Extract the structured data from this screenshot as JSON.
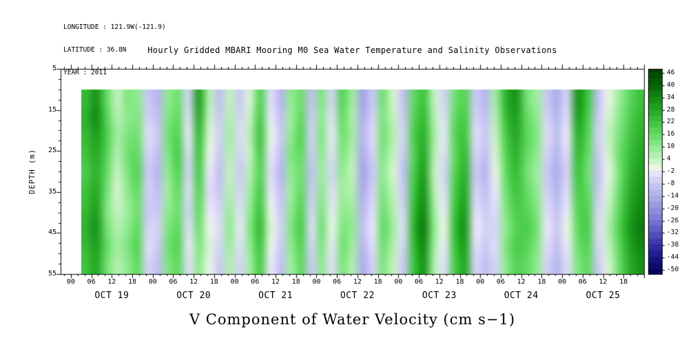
{
  "header": {
    "longitude": "LONGITUDE : 121.9W(-121.9)",
    "latitude": "LATITUDE : 36.8N",
    "year": "YEAR : 2011"
  },
  "chart_data": {
    "type": "heatmap",
    "title": "Hourly Gridded MBARI Mooring M0 Sea Water Temperature and Salinity Observations",
    "xlabel": "V Component of Water Velocity (cm s−1)",
    "ylabel": "DEPTH (m)",
    "y_axis": {
      "min": 5,
      "max": 55,
      "ticks": [
        5,
        15,
        25,
        35,
        45,
        55
      ],
      "minor_step": 2.5,
      "inverted": true
    },
    "x_axis": {
      "time_tick_labels": [
        "00",
        "06",
        "12",
        "18"
      ],
      "day_labels": [
        "OCT 19",
        "OCT 20",
        "OCT 21",
        "OCT 22",
        "OCT 23",
        "OCT 24",
        "OCT 25"
      ],
      "major_tick_hours": 6,
      "minor_tick_hours": 2
    },
    "colorbar": {
      "units": "cm s-1",
      "max": 48,
      "min": -52,
      "segment_step": 3,
      "ticks": [
        46,
        40,
        34,
        28,
        22,
        16,
        10,
        4,
        -2,
        -8,
        -14,
        -20,
        -26,
        -32,
        -38,
        -44,
        -50
      ],
      "stops": [
        {
          "v": 48,
          "c": "#004000"
        },
        {
          "v": 40,
          "c": "#076307"
        },
        {
          "v": 34,
          "c": "#128a12"
        },
        {
          "v": 28,
          "c": "#26a826"
        },
        {
          "v": 22,
          "c": "#3fc43f"
        },
        {
          "v": 16,
          "c": "#63da63"
        },
        {
          "v": 10,
          "c": "#90ea90"
        },
        {
          "v": 4,
          "c": "#c4f2c0"
        },
        {
          "v": 0,
          "c": "#e9f6e4"
        },
        {
          "v": -2,
          "c": "#e8e8f8"
        },
        {
          "v": -8,
          "c": "#c9c9f2"
        },
        {
          "v": -14,
          "c": "#adade9"
        },
        {
          "v": -20,
          "c": "#9292df"
        },
        {
          "v": -26,
          "c": "#7676d2"
        },
        {
          "v": -32,
          "c": "#5454bf"
        },
        {
          "v": -38,
          "c": "#3030a4"
        },
        {
          "v": -44,
          "c": "#161685"
        },
        {
          "v": -52,
          "c": "#000058"
        }
      ]
    },
    "depths": [
      10,
      15,
      20,
      25,
      30,
      35,
      40,
      45,
      50,
      55
    ],
    "data_start_hour": 3,
    "time_step_hours": 3,
    "values": [
      [
        24,
        32,
        16,
        4,
        12,
        10,
        -8,
        -12,
        10,
        14,
        -6,
        30,
        6,
        -10,
        4,
        -8,
        2,
        18,
        -4,
        -12,
        10,
        14,
        -10,
        12,
        -6,
        18,
        8,
        -16,
        -8,
        14,
        2,
        -10,
        16,
        22,
        4,
        -6,
        14,
        18,
        -8,
        -12,
        8,
        26,
        32,
        14,
        8,
        -8,
        -14,
        -6,
        32,
        22,
        -10,
        0,
        8,
        16,
        22
      ],
      [
        26,
        34,
        18,
        6,
        10,
        12,
        -6,
        -10,
        12,
        16,
        -4,
        28,
        4,
        -8,
        6,
        -6,
        4,
        20,
        -2,
        -10,
        8,
        16,
        -8,
        10,
        -4,
        16,
        6,
        -14,
        -6,
        12,
        4,
        -8,
        18,
        24,
        6,
        -4,
        16,
        20,
        -6,
        -10,
        6,
        24,
        30,
        16,
        10,
        -6,
        -12,
        -4,
        30,
        20,
        -8,
        2,
        10,
        18,
        24
      ],
      [
        24,
        30,
        20,
        8,
        12,
        14,
        -4,
        -8,
        14,
        18,
        -2,
        24,
        2,
        -6,
        8,
        -4,
        6,
        22,
        0,
        -8,
        10,
        18,
        -6,
        12,
        -2,
        14,
        8,
        -12,
        -4,
        14,
        6,
        -6,
        20,
        26,
        8,
        -2,
        18,
        22,
        -4,
        -8,
        4,
        20,
        28,
        18,
        12,
        -4,
        -10,
        -2,
        26,
        18,
        -6,
        4,
        12,
        20,
        26
      ],
      [
        22,
        28,
        18,
        6,
        14,
        16,
        -6,
        -10,
        12,
        20,
        -4,
        22,
        0,
        -8,
        6,
        -6,
        4,
        20,
        -2,
        -10,
        12,
        16,
        -8,
        10,
        -4,
        12,
        6,
        -14,
        -6,
        12,
        4,
        -8,
        18,
        28,
        6,
        -4,
        16,
        24,
        -6,
        -10,
        2,
        18,
        26,
        16,
        10,
        -6,
        -12,
        -4,
        24,
        16,
        -8,
        2,
        14,
        22,
        28
      ],
      [
        20,
        26,
        16,
        4,
        12,
        18,
        -8,
        -12,
        10,
        18,
        -6,
        20,
        -2,
        -10,
        4,
        -8,
        6,
        18,
        -4,
        -12,
        10,
        14,
        -10,
        8,
        -6,
        10,
        4,
        -16,
        -8,
        10,
        2,
        -10,
        20,
        30,
        4,
        -6,
        18,
        26,
        -8,
        -12,
        0,
        16,
        24,
        14,
        8,
        -8,
        -14,
        -6,
        22,
        14,
        -10,
        0,
        12,
        24,
        30
      ],
      [
        22,
        28,
        14,
        2,
        10,
        16,
        -6,
        -10,
        8,
        16,
        -4,
        18,
        -4,
        -8,
        6,
        -6,
        8,
        20,
        -2,
        -10,
        8,
        16,
        -8,
        10,
        -4,
        8,
        6,
        -14,
        -6,
        12,
        4,
        -8,
        22,
        32,
        6,
        -4,
        20,
        28,
        -6,
        -10,
        -2,
        14,
        22,
        16,
        10,
        -6,
        -12,
        -4,
        20,
        16,
        -8,
        2,
        14,
        26,
        32
      ],
      [
        24,
        30,
        12,
        4,
        8,
        14,
        -8,
        -8,
        10,
        14,
        -6,
        16,
        -2,
        -6,
        8,
        -4,
        10,
        22,
        0,
        -8,
        10,
        18,
        -6,
        12,
        -2,
        10,
        8,
        -12,
        -4,
        14,
        6,
        -6,
        24,
        34,
        8,
        -2,
        22,
        30,
        -4,
        -8,
        -4,
        12,
        20,
        18,
        12,
        -4,
        -10,
        -2,
        18,
        18,
        -6,
        4,
        16,
        28,
        34
      ],
      [
        26,
        32,
        14,
        6,
        10,
        16,
        -6,
        -6,
        12,
        16,
        -4,
        14,
        0,
        -4,
        10,
        -2,
        12,
        24,
        2,
        -6,
        12,
        20,
        -4,
        14,
        0,
        12,
        10,
        -10,
        -2,
        16,
        8,
        -4,
        26,
        36,
        10,
        0,
        24,
        32,
        -2,
        -6,
        -6,
        10,
        18,
        20,
        14,
        -2,
        -8,
        0,
        16,
        20,
        -4,
        6,
        18,
        30,
        36
      ],
      [
        24,
        30,
        16,
        8,
        12,
        18,
        -4,
        -8,
        14,
        18,
        -2,
        12,
        2,
        -6,
        8,
        -4,
        10,
        22,
        0,
        -8,
        10,
        18,
        -6,
        12,
        -2,
        14,
        8,
        -12,
        -4,
        14,
        6,
        -6,
        24,
        34,
        8,
        -2,
        22,
        30,
        -4,
        -8,
        -4,
        12,
        20,
        18,
        12,
        -4,
        -10,
        -2,
        14,
        18,
        -6,
        4,
        16,
        28,
        34
      ],
      [
        22,
        28,
        14,
        6,
        10,
        16,
        -6,
        -10,
        12,
        16,
        -4,
        10,
        0,
        -8,
        6,
        -6,
        8,
        20,
        -2,
        -10,
        8,
        16,
        -8,
        10,
        -4,
        12,
        6,
        -14,
        -6,
        12,
        4,
        -8,
        22,
        32,
        6,
        -4,
        20,
        28,
        -6,
        -10,
        -6,
        10,
        18,
        16,
        10,
        -6,
        -12,
        -4,
        12,
        16,
        -8,
        2,
        14,
        26,
        32
      ]
    ]
  }
}
